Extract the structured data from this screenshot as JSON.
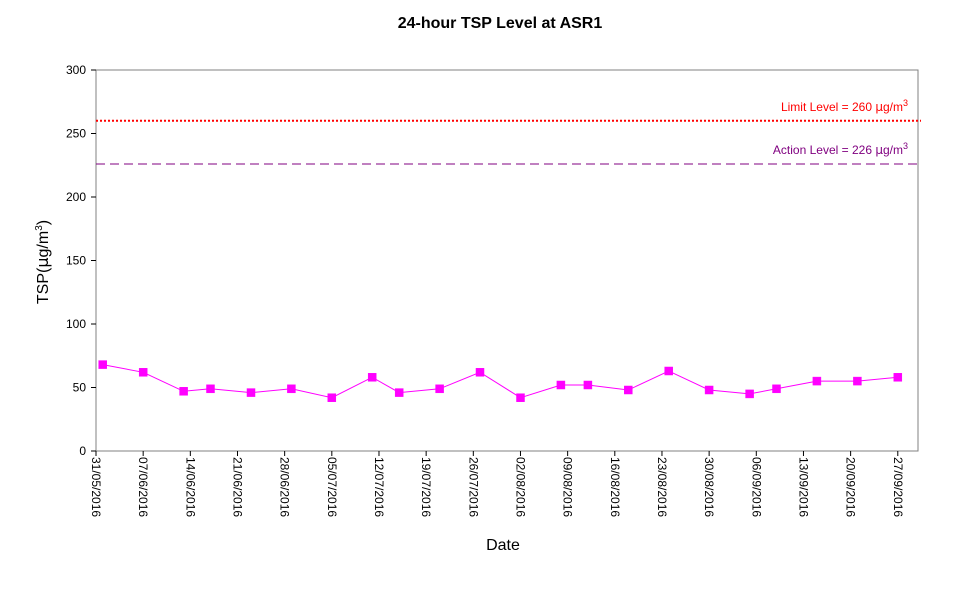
{
  "chart_data": {
    "type": "line",
    "title": "24-hour TSP Level at ASR1",
    "xlabel": "Date",
    "ylabel_parts": [
      "TSP(",
      "µ",
      "g/m",
      "3",
      ")"
    ],
    "ylim": [
      0,
      300
    ],
    "yticks": [
      0,
      50,
      100,
      150,
      200,
      250,
      300
    ],
    "xlim": [
      "2016-05-31",
      "2016-09-30"
    ],
    "xticks": [
      "31/05/2016",
      "07/06/2016",
      "14/06/2016",
      "21/06/2016",
      "28/06/2016",
      "05/07/2016",
      "12/07/2016",
      "19/07/2016",
      "26/07/2016",
      "02/08/2016",
      "09/08/2016",
      "16/08/2016",
      "23/08/2016",
      "30/08/2016",
      "06/09/2016",
      "13/09/2016",
      "20/09/2016",
      "27/09/2016"
    ],
    "grid": false,
    "series": [
      {
        "color": "#ff00ff",
        "marker": "square",
        "points": [
          {
            "x": "2016-06-01",
            "y": 68
          },
          {
            "x": "2016-06-07",
            "y": 62
          },
          {
            "x": "2016-06-13",
            "y": 47
          },
          {
            "x": "2016-06-17",
            "y": 49
          },
          {
            "x": "2016-06-23",
            "y": 46
          },
          {
            "x": "2016-06-29",
            "y": 49
          },
          {
            "x": "2016-07-05",
            "y": 42
          },
          {
            "x": "2016-07-11",
            "y": 58
          },
          {
            "x": "2016-07-15",
            "y": 46
          },
          {
            "x": "2016-07-21",
            "y": 49
          },
          {
            "x": "2016-07-27",
            "y": 62
          },
          {
            "x": "2016-08-02",
            "y": 42
          },
          {
            "x": "2016-08-08",
            "y": 52
          },
          {
            "x": "2016-08-12",
            "y": 52
          },
          {
            "x": "2016-08-18",
            "y": 48
          },
          {
            "x": "2016-08-24",
            "y": 63
          },
          {
            "x": "2016-08-30",
            "y": 48
          },
          {
            "x": "2016-09-05",
            "y": 45
          },
          {
            "x": "2016-09-09",
            "y": 49
          },
          {
            "x": "2016-09-15",
            "y": 55
          },
          {
            "x": "2016-09-21",
            "y": 55
          },
          {
            "x": "2016-09-27",
            "y": 58
          }
        ]
      }
    ],
    "reference_lines": [
      {
        "label_parts": [
          "Limit Level  = 260 ",
          "µ",
          "g/m",
          "3"
        ],
        "y": 260,
        "color": "#ff0000",
        "style": "dotted"
      },
      {
        "label_parts": [
          "Action Level  = 226 ",
          "µ",
          "g/m",
          "3"
        ],
        "y": 226,
        "color": "#800080",
        "style": "dashed"
      }
    ]
  }
}
